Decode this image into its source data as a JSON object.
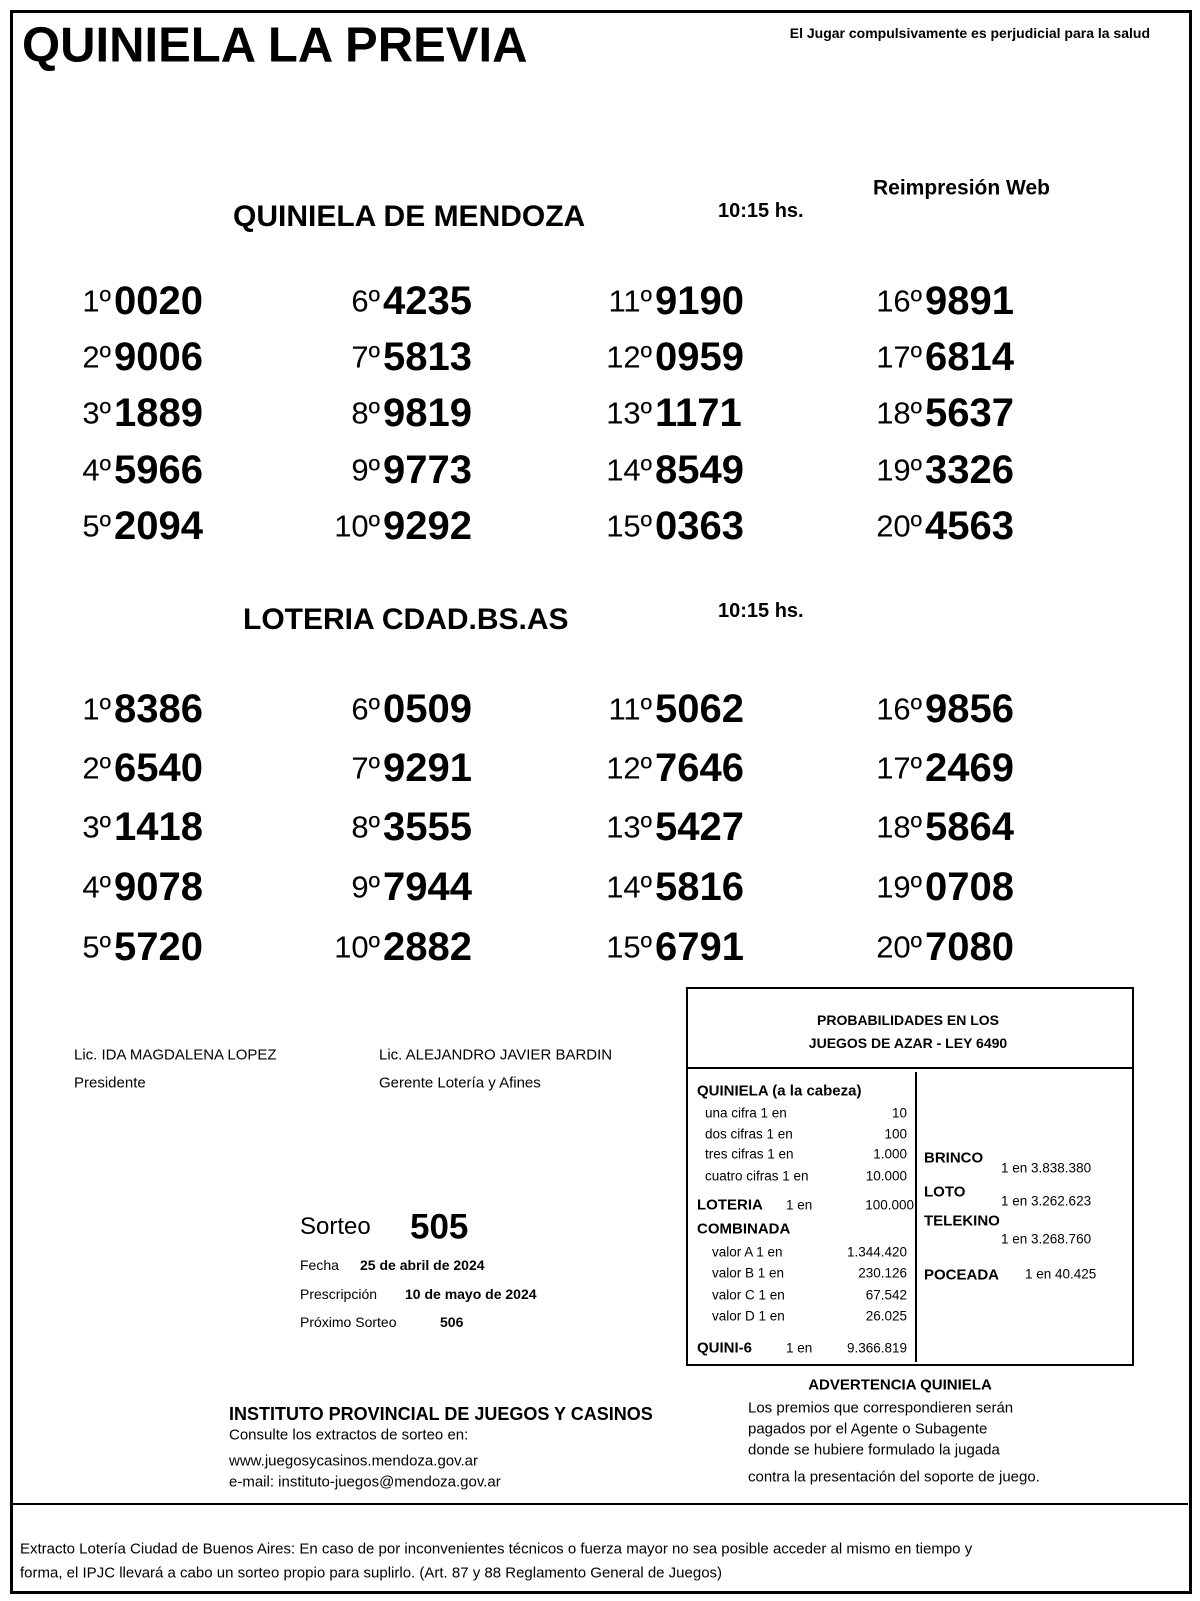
{
  "header": {
    "title": "QUINIELA LA PREVIA",
    "warning": "El Jugar compulsivamente es perjudicial para la salud",
    "reprint": "Reimpresión Web"
  },
  "sections": [
    {
      "title": "QUINIELA  DE MENDOZA",
      "time": "10:15 hs.",
      "results": [
        {
          "position": "1º",
          "number": "0020"
        },
        {
          "position": "2º",
          "number": "9006"
        },
        {
          "position": "3º",
          "number": "1889"
        },
        {
          "position": "4º",
          "number": "5966"
        },
        {
          "position": "5º",
          "number": "2094"
        },
        {
          "position": "6º",
          "number": "4235"
        },
        {
          "position": "7º",
          "number": "5813"
        },
        {
          "position": "8º",
          "number": "9819"
        },
        {
          "position": "9º",
          "number": "9773"
        },
        {
          "position": "10º",
          "number": "9292"
        },
        {
          "position": "11º",
          "number": "9190"
        },
        {
          "position": "12º",
          "number": "0959"
        },
        {
          "position": "13º",
          "number": "1171"
        },
        {
          "position": "14º",
          "number": "8549"
        },
        {
          "position": "15º",
          "number": "0363"
        },
        {
          "position": "16º",
          "number": "9891"
        },
        {
          "position": "17º",
          "number": "6814"
        },
        {
          "position": "18º",
          "number": "5637"
        },
        {
          "position": "19º",
          "number": "3326"
        },
        {
          "position": "20º",
          "number": "4563"
        }
      ]
    },
    {
      "title": "LOTERIA CDAD.BS.AS",
      "time": "10:15 hs.",
      "results": [
        {
          "position": "1º",
          "number": "8386"
        },
        {
          "position": "2º",
          "number": "6540"
        },
        {
          "position": "3º",
          "number": "1418"
        },
        {
          "position": "4º",
          "number": "9078"
        },
        {
          "position": "5º",
          "number": "5720"
        },
        {
          "position": "6º",
          "number": "0509"
        },
        {
          "position": "7º",
          "number": "9291"
        },
        {
          "position": "8º",
          "number": "3555"
        },
        {
          "position": "9º",
          "number": "7944"
        },
        {
          "position": "10º",
          "number": "2882"
        },
        {
          "position": "11º",
          "number": "5062"
        },
        {
          "position": "12º",
          "number": "7646"
        },
        {
          "position": "13º",
          "number": "5427"
        },
        {
          "position": "14º",
          "number": "5816"
        },
        {
          "position": "15º",
          "number": "6791"
        },
        {
          "position": "16º",
          "number": "9856"
        },
        {
          "position": "17º",
          "number": "2469"
        },
        {
          "position": "18º",
          "number": "5864"
        },
        {
          "position": "19º",
          "number": "0708"
        },
        {
          "position": "20º",
          "number": "7080"
        }
      ]
    }
  ],
  "signatures": [
    {
      "name": "Lic. IDA MAGDALENA LOPEZ",
      "role": "Presidente"
    },
    {
      "name": "Lic. ALEJANDRO JAVIER BARDIN",
      "role": "Gerente Lotería y Afines"
    }
  ],
  "draw": {
    "label": "Sorteo",
    "number": "505",
    "date_label": "Fecha",
    "date": "25 de abril de 2024",
    "prescription_label": "Prescripción",
    "prescription": "10 de mayo de 2024",
    "next_label": "Próximo Sorteo",
    "next": "506"
  },
  "probabilities": {
    "title": [
      "PROBABILIDADES EN LOS",
      "JUEGOS DE AZAR - LEY 6490"
    ],
    "quiniela": {
      "heading": "QUINIELA (a la cabeza)",
      "rows": [
        {
          "label": "una cifra 1 en",
          "value": "10"
        },
        {
          "label": "dos cifras 1 en",
          "value": "100"
        },
        {
          "label": "tres cifras 1 en",
          "value": "1.000"
        },
        {
          "label": "cuatro cifras 1 en",
          "value": "10.000"
        }
      ]
    },
    "loteria": {
      "label": "LOTERIA",
      "odds_label": "1 en",
      "value": "100.000"
    },
    "combinada": {
      "heading": "COMBINADA",
      "rows": [
        {
          "label": "valor A 1 en",
          "value": "1.344.420"
        },
        {
          "label": "valor B 1 en",
          "value": "230.126"
        },
        {
          "label": "valor C 1 en",
          "value": "67.542"
        },
        {
          "label": "valor D 1 en",
          "value": "26.025"
        }
      ]
    },
    "quini6": {
      "label": "QUINI-6",
      "odds_label": "1 en",
      "value": "9.366.819"
    },
    "others": [
      {
        "label": "BRINCO",
        "odds": "1 en 3.838.380"
      },
      {
        "label": "LOTO",
        "odds": "1 en 3.262.623"
      },
      {
        "label": "TELEKINO",
        "odds": "1 en 3.268.760"
      },
      {
        "label": "POCEADA",
        "odds": "1 en 40.425"
      }
    ]
  },
  "institute": {
    "title": "INSTITUTO PROVINCIAL DE JUEGOS Y CASINOS",
    "lines": [
      "Consulte los extractos de sorteo en:",
      "www.juegosycasinos.mendoza.gov.ar",
      "e-mail:  instituto-juegos@mendoza.gov.ar"
    ]
  },
  "advertencia": {
    "title": "ADVERTENCIA QUINIELA",
    "lines": [
      "Los premios que correspondieren serán",
      "pagados por el Agente o Subagente",
      "donde se hubiere formulado la jugada",
      "contra la presentación del soporte de juego."
    ]
  },
  "footer": [
    "Extracto Lotería Ciudad de Buenos Aires: En caso de por inconvenientes técnicos o fuerza mayor no sea posible acceder al mismo en tiempo y",
    "forma, el IPJC llevará a cabo un sorteo propio para suplirlo. (Art. 87 y 88 Reglamento General de Juegos)"
  ]
}
